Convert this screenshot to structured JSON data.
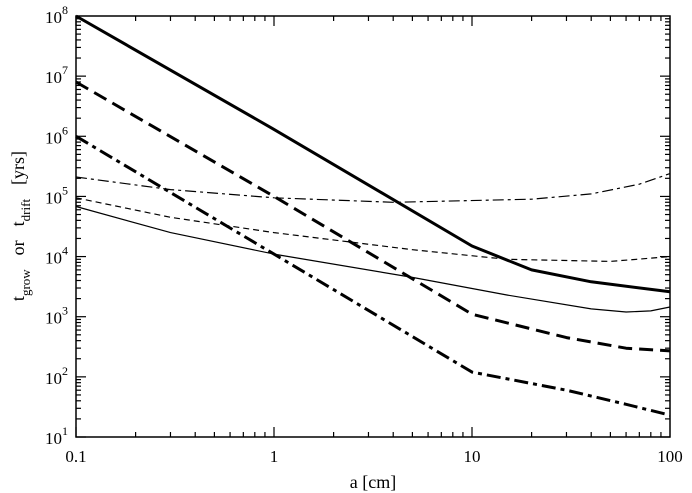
{
  "chart_data": {
    "type": "line",
    "title": "",
    "xlabel": "a [cm]",
    "ylabel": {
      "parts": [
        {
          "text": "t",
          "sub": "grow"
        },
        {
          "text": "or"
        },
        {
          "text": "t",
          "sub": "drift"
        },
        {
          "text": "[yrs]"
        }
      ]
    },
    "xscale": "log",
    "yscale": "log",
    "xlim": [
      0.1,
      100
    ],
    "ylim": [
      10,
      100000000
    ],
    "x_ticks": [
      {
        "value": 0.1,
        "label": "0.1"
      },
      {
        "value": 1,
        "label": "1"
      },
      {
        "value": 10,
        "label": "10"
      },
      {
        "value": 100,
        "label": "100"
      }
    ],
    "y_ticks": [
      {
        "value": 10,
        "base": "10",
        "exp": "1"
      },
      {
        "value": 100,
        "base": "10",
        "exp": "2"
      },
      {
        "value": 1000,
        "base": "10",
        "exp": "3"
      },
      {
        "value": 10000,
        "base": "10",
        "exp": "4"
      },
      {
        "value": 100000,
        "base": "10",
        "exp": "5"
      },
      {
        "value": 1000000,
        "base": "10",
        "exp": "6"
      },
      {
        "value": 10000000,
        "base": "10",
        "exp": "7"
      },
      {
        "value": 100000000,
        "base": "10",
        "exp": "8"
      }
    ],
    "grid": false,
    "series": [
      {
        "id": "thick-solid",
        "style": "solid",
        "weight": "thick",
        "points": [
          [
            0.1,
            100000000
          ],
          [
            1,
            1300000
          ],
          [
            10,
            15000
          ],
          [
            20,
            6000
          ],
          [
            40,
            3800
          ],
          [
            100,
            2600
          ]
        ]
      },
      {
        "id": "thick-dashed",
        "style": "dashed",
        "weight": "thick",
        "points": [
          [
            0.1,
            8000000
          ],
          [
            1,
            100000
          ],
          [
            10,
            1100
          ],
          [
            30,
            450
          ],
          [
            60,
            300
          ],
          [
            100,
            270
          ]
        ]
      },
      {
        "id": "thick-dashdot",
        "style": "dashdot",
        "weight": "thick",
        "points": [
          [
            0.1,
            1000000
          ],
          [
            1,
            11000
          ],
          [
            10,
            120
          ],
          [
            30,
            60
          ],
          [
            60,
            35
          ],
          [
            100,
            23
          ]
        ]
      },
      {
        "id": "thin-dashdot",
        "style": "dashdot",
        "weight": "thin",
        "points": [
          [
            0.1,
            210000
          ],
          [
            0.3,
            130000
          ],
          [
            1,
            95000
          ],
          [
            4,
            80000
          ],
          [
            20,
            90000
          ],
          [
            40,
            110000
          ],
          [
            70,
            160000
          ],
          [
            100,
            240000
          ]
        ]
      },
      {
        "id": "thin-dashed",
        "style": "dashed",
        "weight": "thin",
        "points": [
          [
            0.1,
            95000
          ],
          [
            0.3,
            45000
          ],
          [
            1,
            25000
          ],
          [
            5,
            13000
          ],
          [
            15,
            9000
          ],
          [
            50,
            8300
          ],
          [
            100,
            10000
          ]
        ]
      },
      {
        "id": "thin-solid",
        "style": "solid",
        "weight": "thin",
        "points": [
          [
            0.1,
            68000
          ],
          [
            0.3,
            25000
          ],
          [
            1,
            11000
          ],
          [
            5,
            4500
          ],
          [
            15,
            2300
          ],
          [
            40,
            1350
          ],
          [
            60,
            1200
          ],
          [
            80,
            1250
          ],
          [
            100,
            1450
          ]
        ]
      }
    ]
  }
}
